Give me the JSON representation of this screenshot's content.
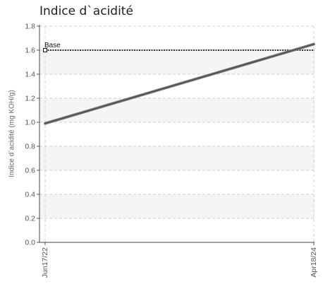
{
  "chart_data": {
    "type": "line",
    "title": "Indice d`acidité",
    "ylabel": "Indice d`acidité (mg KOH/g)",
    "xlabel": "",
    "ylim": [
      0,
      1.8
    ],
    "yticks": [
      "0.0",
      "0.2",
      "0.4",
      "0.6",
      "0.8",
      "1.0",
      "1.2",
      "1.4",
      "1.6",
      "1.8"
    ],
    "xticks": [
      "Jun17/22",
      "Apr18/24"
    ],
    "grid": true,
    "series": [
      {
        "values": [
          0.99,
          1.65
        ],
        "color": "#555555"
      }
    ],
    "reference_line": {
      "label": "Base",
      "value": 1.6,
      "color": "#333333"
    }
  }
}
